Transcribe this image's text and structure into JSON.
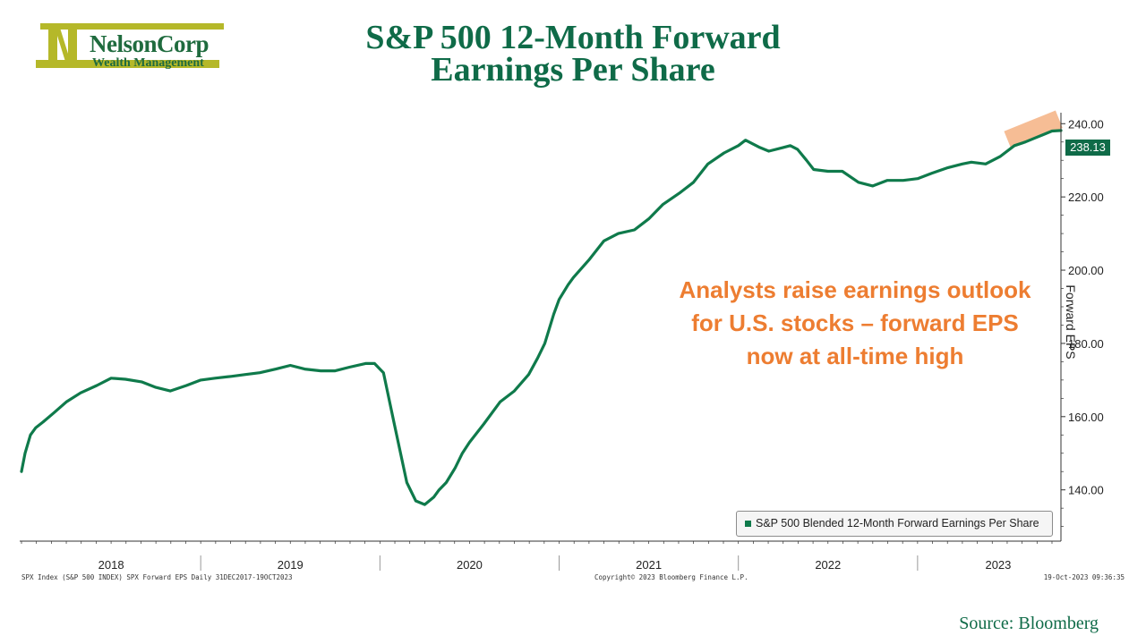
{
  "logo": {
    "name": "NelsonCorp",
    "sub": "Wealth Management",
    "color_dark": "#1f6b3e",
    "color_accent": "#b5b829"
  },
  "title_lines": [
    "S&P 500 12-Month Forward",
    "Earnings Per Share"
  ],
  "annotation_lines": [
    "Analysts raise earnings outlook",
    "for U.S. stocks – forward EPS",
    "now at all-time high"
  ],
  "footer": {
    "left": "SPX Index (S&P 500 INDEX) SPX Forward EPS  Daily 31DEC2017-19OCT2023",
    "center": "Copyright© 2023 Bloomberg Finance L.P.",
    "right": "19-Oct-2023 09:36:35"
  },
  "source": "Source: Bloomberg",
  "colors": {
    "line": "#0f7a4b",
    "title": "#0f6b48",
    "annotation": "#ed7d31",
    "highlight": "#f4b183"
  },
  "chart_data": {
    "type": "line",
    "title": "S&P 500 12-Month Forward Earnings Per Share",
    "ylabel": "Forward EPS",
    "ylim": [
      126,
      243
    ],
    "xlim": [
      2017.99,
      2023.8
    ],
    "yticks": [
      140,
      160,
      180,
      200,
      220,
      240
    ],
    "ytick_labels": [
      "140.00",
      "160.00",
      "180.00",
      "200.00",
      "220.00",
      "240.00"
    ],
    "year_labels": [
      "2018",
      "2019",
      "2020",
      "2021",
      "2022",
      "2023"
    ],
    "legend": "S&P 500 Blended 12-Month Forward Earnings Per Share",
    "legend_position": "bottom-right",
    "last_value": 238.13,
    "last_value_label": "238.13",
    "series": [
      {
        "name": "S&P 500 Blended 12-Month Forward Earnings Per Share",
        "x": [
          2018.0,
          2018.02,
          2018.05,
          2018.08,
          2018.12,
          2018.18,
          2018.25,
          2018.33,
          2018.42,
          2018.5,
          2018.58,
          2018.67,
          2018.75,
          2018.83,
          2018.92,
          2019.0,
          2019.08,
          2019.17,
          2019.25,
          2019.33,
          2019.42,
          2019.5,
          2019.58,
          2019.67,
          2019.75,
          2019.83,
          2019.92,
          2019.97,
          2020.02,
          2020.08,
          2020.15,
          2020.2,
          2020.25,
          2020.3,
          2020.33,
          2020.37,
          2020.42,
          2020.46,
          2020.5,
          2020.58,
          2020.67,
          2020.75,
          2020.83,
          2020.88,
          2020.92,
          2020.97,
          2021.0,
          2021.05,
          2021.08,
          2021.17,
          2021.25,
          2021.33,
          2021.42,
          2021.5,
          2021.58,
          2021.67,
          2021.75,
          2021.83,
          2021.92,
          2022.0,
          2022.04,
          2022.08,
          2022.12,
          2022.17,
          2022.25,
          2022.29,
          2022.33,
          2022.38,
          2022.42,
          2022.5,
          2022.58,
          2022.67,
          2022.75,
          2022.83,
          2022.92,
          2023.0,
          2023.08,
          2023.17,
          2023.25,
          2023.3,
          2023.38,
          2023.46,
          2023.54,
          2023.6,
          2023.65,
          2023.7,
          2023.75,
          2023.8
        ],
        "values": [
          145,
          150,
          155,
          157,
          158.5,
          161,
          164,
          166.5,
          168.5,
          170.5,
          170.2,
          169.5,
          168,
          167,
          168.5,
          170,
          170.5,
          171,
          171.5,
          172,
          173,
          174,
          173,
          172.5,
          172.5,
          173.5,
          174.5,
          174.5,
          172,
          158,
          142,
          137,
          136,
          138,
          140,
          142,
          146,
          150,
          153,
          158,
          164,
          167,
          171.5,
          176,
          180,
          188,
          192,
          196,
          198,
          203,
          208,
          210,
          211,
          214,
          218,
          221,
          224,
          229,
          232,
          234,
          235.5,
          234.5,
          233.5,
          232.5,
          233.5,
          234,
          233,
          230,
          227.5,
          227,
          227,
          224,
          223,
          224.5,
          224.5,
          225,
          226.5,
          228,
          229,
          229.5,
          229,
          231,
          234,
          235,
          236,
          237,
          238,
          238.13
        ]
      }
    ]
  }
}
